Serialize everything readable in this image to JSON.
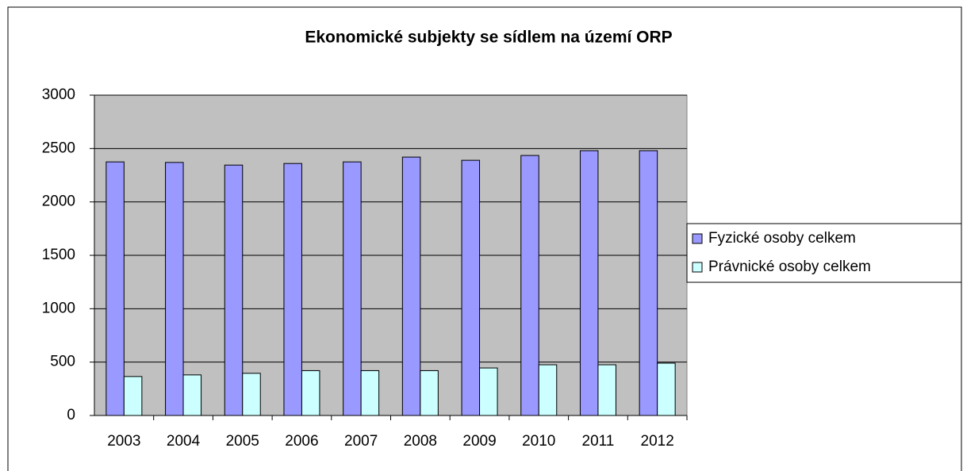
{
  "chart_data": {
    "type": "bar",
    "title": "Ekonomické subjekty se sídlem na území ORP",
    "categories": [
      "2003",
      "2004",
      "2005",
      "2006",
      "2007",
      "2008",
      "2009",
      "2010",
      "2011",
      "2012"
    ],
    "series": [
      {
        "name": "Fyzické osoby celkem",
        "color": "#9999ff",
        "values": [
          2375,
          2370,
          2345,
          2360,
          2375,
          2420,
          2390,
          2435,
          2480,
          2480
        ]
      },
      {
        "name": "Právnické osoby celkem",
        "color": "#ccffff",
        "values": [
          365,
          380,
          395,
          420,
          420,
          420,
          445,
          475,
          475,
          490
        ]
      }
    ],
    "ylim": [
      0,
      3000
    ],
    "yticks": [
      0,
      500,
      1000,
      1500,
      2000,
      2500,
      3000
    ],
    "grid": true,
    "legend": "right"
  }
}
